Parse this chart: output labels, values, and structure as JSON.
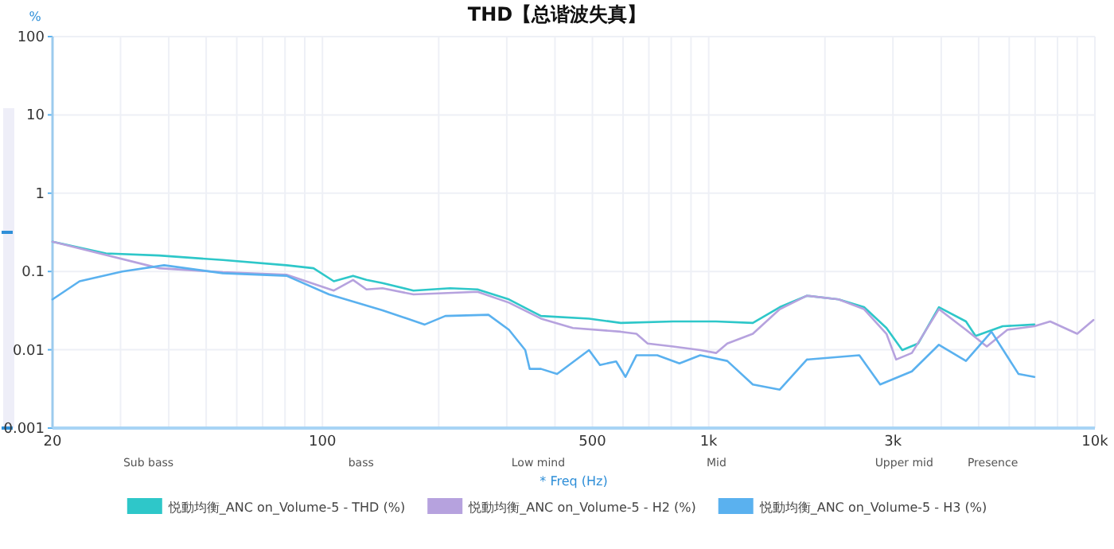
{
  "chart_data": {
    "type": "line",
    "title": "THD【总谐波失真】",
    "ylabel": "%",
    "xlabel": "* Freq (Hz)",
    "log": "xy",
    "grid": true,
    "legend": "bottom",
    "xlim": [
      20,
      10000
    ],
    "ylim": [
      0.001,
      100
    ],
    "xticks": [
      20,
      {
        "value": 30,
        "label": null
      },
      {
        "value": 40,
        "label": null
      },
      {
        "value": 50,
        "label": null
      },
      {
        "value": 60,
        "label": null
      },
      {
        "value": 70,
        "label": null
      },
      {
        "value": 80,
        "label": null
      },
      {
        "value": 90,
        "label": null
      },
      100,
      {
        "value": 200,
        "label": null
      },
      {
        "value": 300,
        "label": null
      },
      {
        "value": 400,
        "label": null
      },
      500,
      {
        "value": 600,
        "label": null
      },
      {
        "value": 700,
        "label": null
      },
      {
        "value": 800,
        "label": null
      },
      {
        "value": 900,
        "label": null
      },
      {
        "value": 1000,
        "label": "1k"
      },
      {
        "value": 2000,
        "label": null
      },
      {
        "value": 3000,
        "label": "3k"
      },
      {
        "value": 4000,
        "label": null
      },
      {
        "value": 5000,
        "label": null
      },
      {
        "value": 6000,
        "label": null
      },
      {
        "value": 7000,
        "label": null
      },
      {
        "value": 8000,
        "label": null
      },
      {
        "value": 9000,
        "label": null
      },
      {
        "value": 10000,
        "label": "10k"
      }
    ],
    "yticks": [
      0.001,
      0.01,
      0.1,
      1,
      10,
      100
    ],
    "annotations": [
      "Sub bass",
      "bass",
      "Low mind",
      "Mid",
      "Upper mid",
      "Presence"
    ],
    "series": [
      {
        "name": "悦動均衡_ANC on_Volume-5 -  THD (%)",
        "color": "#2ec7c9",
        "x": [
          20,
          27.5,
          37.8,
          55.2,
          80.7,
          94.8,
          107,
          120,
          130,
          143,
          172,
          214,
          252,
          304,
          344,
          368,
          490,
          592,
          809,
          1045,
          1301,
          1528,
          1796,
          2169,
          2525,
          2886,
          3171,
          3485,
          3945,
          4636,
          4909,
          5771,
          6971
        ],
        "values": [
          0.24,
          0.17,
          0.16,
          0.14,
          0.12,
          0.11,
          0.075,
          0.088,
          0.078,
          0.071,
          0.057,
          0.061,
          0.059,
          0.044,
          0.032,
          0.027,
          0.025,
          0.022,
          0.023,
          0.023,
          0.022,
          0.035,
          0.049,
          0.044,
          0.035,
          0.019,
          0.0099,
          0.012,
          0.035,
          0.023,
          0.015,
          0.02,
          0.021
        ]
      },
      {
        "name": "悦動均衡_ANC on_Volume-5 -  H2 (%)",
        "color": "#b6a2de",
        "x": [
          20,
          37.8,
          55.2,
          80.7,
          107,
          120,
          130,
          143,
          172,
          252,
          304,
          368,
          445,
          592,
          650,
          695,
          809,
          951,
          1045,
          1117,
          1301,
          1528,
          1796,
          2169,
          2525,
          2886,
          3057,
          3358,
          3945,
          4636,
          5250,
          5934,
          6971,
          7660,
          9000,
          9909
        ],
        "values": [
          0.24,
          0.11,
          0.098,
          0.091,
          0.057,
          0.078,
          0.059,
          0.061,
          0.051,
          0.055,
          0.04,
          0.025,
          0.019,
          0.017,
          0.016,
          0.012,
          0.011,
          0.0099,
          0.0091,
          0.012,
          0.016,
          0.033,
          0.049,
          0.044,
          0.033,
          0.016,
          0.0075,
          0.0091,
          0.033,
          0.018,
          0.011,
          0.018,
          0.02,
          0.023,
          0.016,
          0.024
        ]
      },
      {
        "name": "悦動均衡_ANC on_Volume-5 -  H3 (%)",
        "color": "#5ab1ef",
        "x": [
          20,
          23.5,
          30.3,
          38.9,
          55.2,
          80.7,
          104,
          143,
          184,
          208,
          269,
          304,
          335,
          344,
          368,
          405,
          490,
          523,
          576,
          609,
          650,
          736,
          840,
          951,
          1117,
          1301,
          1528,
          1796,
          2455,
          2779,
          3358,
          3945,
          4636,
          5398,
          6343,
          6971
        ],
        "values": [
          0.044,
          0.075,
          0.1,
          0.12,
          0.095,
          0.088,
          0.051,
          0.032,
          0.021,
          0.027,
          0.028,
          0.018,
          0.0099,
          0.0057,
          0.0057,
          0.0049,
          0.0099,
          0.0064,
          0.0071,
          0.0045,
          0.0085,
          0.0085,
          0.0067,
          0.0085,
          0.0072,
          0.0036,
          0.0031,
          0.0075,
          0.0085,
          0.0036,
          0.0053,
          0.0116,
          0.0072,
          0.017,
          0.0049,
          0.0045
        ]
      }
    ]
  }
}
